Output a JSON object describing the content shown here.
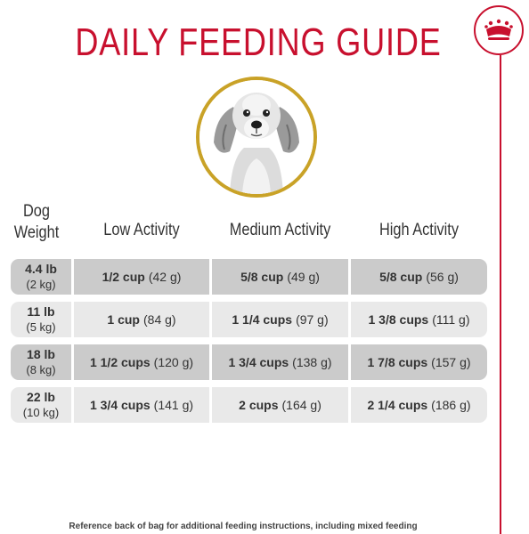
{
  "title": "DAILY FEEDING GUIDE",
  "colors": {
    "brand_red": "#c8102e",
    "gold_ring": "#c9a227",
    "row_dark": "#cbcbcb",
    "row_light": "#e9e9e9"
  },
  "icons": {
    "brand": "crown-icon",
    "photo": "dog-portrait"
  },
  "table": {
    "weight_header": [
      "Dog",
      "Weight"
    ],
    "headers": [
      "Low Activity",
      "Medium Activity",
      "High Activity"
    ],
    "rows": [
      {
        "weight_lb": "4.4 lb",
        "weight_kg": "(2 kg)",
        "cells": [
          {
            "amount": "1/2 cup",
            "grams": "(42 g)"
          },
          {
            "amount": "5/8 cup",
            "grams": "(49 g)"
          },
          {
            "amount": "5/8 cup",
            "grams": "(56 g)"
          }
        ]
      },
      {
        "weight_lb": "11 lb",
        "weight_kg": "(5 kg)",
        "cells": [
          {
            "amount": "1 cup",
            "grams": "(84 g)"
          },
          {
            "amount": "1 1/4 cups",
            "grams": "(97 g)"
          },
          {
            "amount": "1 3/8 cups",
            "grams": "(111 g)"
          }
        ]
      },
      {
        "weight_lb": "18 lb",
        "weight_kg": "(8 kg)",
        "cells": [
          {
            "amount": "1 1/2 cups",
            "grams": "(120 g)"
          },
          {
            "amount": "1 3/4 cups",
            "grams": "(138 g)"
          },
          {
            "amount": "1 7/8 cups",
            "grams": "(157 g)"
          }
        ]
      },
      {
        "weight_lb": "22 lb",
        "weight_kg": "(10 kg)",
        "cells": [
          {
            "amount": "1 3/4 cups",
            "grams": "(141 g)"
          },
          {
            "amount": "2 cups",
            "grams": "(164 g)"
          },
          {
            "amount": "2 1/4 cups",
            "grams": "(186 g)"
          }
        ]
      }
    ]
  },
  "footnote": "Reference back of bag for additional feeding instructions, including mixed feeding"
}
